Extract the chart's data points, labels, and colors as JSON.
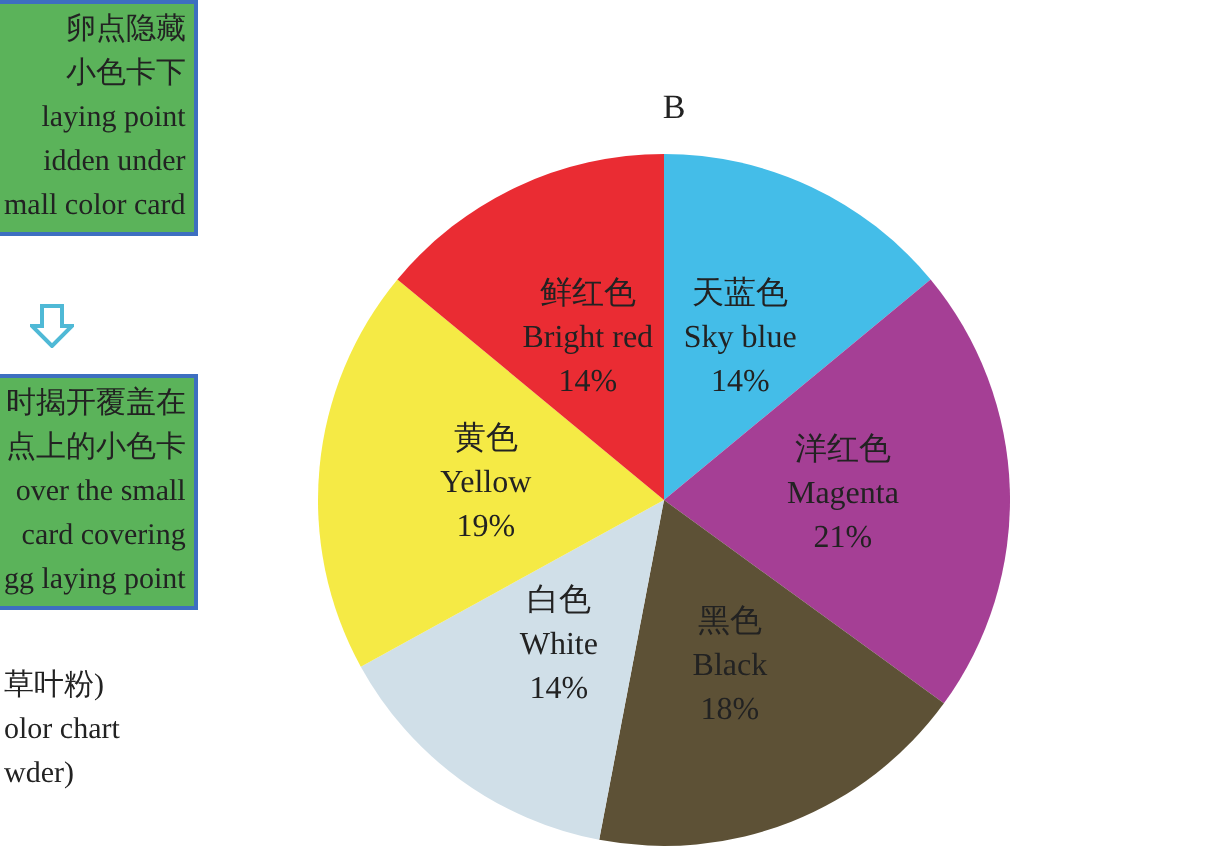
{
  "chart_data": {
    "type": "pie",
    "title": "B",
    "categories": [
      "天蓝色\nSky blue",
      "洋红色\nMagenta",
      "黑色\nBlack",
      "白色\nWhite",
      "黄色\nYellow",
      "鲜红色\nBright red"
    ],
    "values": [
      14,
      21,
      18,
      14,
      19,
      14
    ],
    "value_labels": [
      "14%",
      "21%",
      "18%",
      "14%",
      "19%",
      "14%"
    ],
    "colors": [
      "#44bde8",
      "#a53f95",
      "#5d5136",
      "#d0dfe8",
      "#f5ea45",
      "#ea2c33"
    ],
    "legend": false,
    "annotations": [
      "卵点隐藏小色卡下",
      "laying point\nidden under\nmall color card",
      "时揭开覆盖在点上的小色卡",
      "over the small\ncard covering\ngg laying point",
      "草叶粉)\nolor chart\nwder)"
    ]
  }
}
